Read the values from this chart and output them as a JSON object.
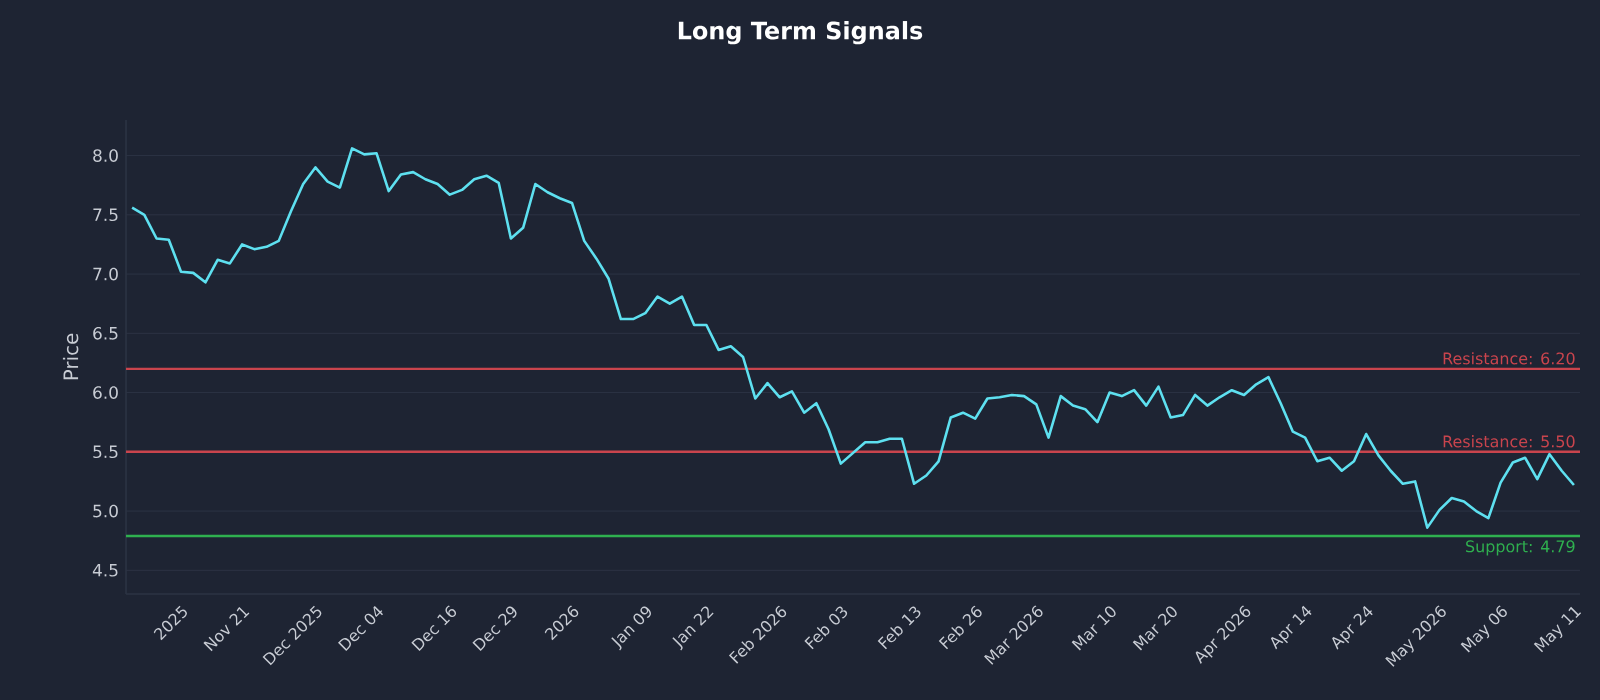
{
  "chart_data": {
    "type": "line",
    "title": "Long Term Signals",
    "ylabel": "Price",
    "categories": [
      null,
      null,
      null,
      null,
      "2025",
      null,
      null,
      null,
      null,
      "Nov 21",
      null,
      null,
      null,
      null,
      null,
      "Dec 2025",
      null,
      null,
      null,
      null,
      "Dec 04",
      null,
      null,
      null,
      null,
      null,
      "Dec 16",
      null,
      null,
      null,
      null,
      "Dec 29",
      null,
      null,
      null,
      null,
      "2026",
      null,
      null,
      null,
      null,
      null,
      "Jan 09",
      null,
      null,
      null,
      null,
      "Jan 22",
      null,
      null,
      null,
      null,
      null,
      "Feb 2026",
      null,
      null,
      null,
      null,
      "Feb 03",
      null,
      null,
      null,
      null,
      null,
      "Feb 13",
      null,
      null,
      null,
      null,
      "Feb 26",
      null,
      null,
      null,
      null,
      "Mar 2026",
      null,
      null,
      null,
      null,
      null,
      "Mar 10",
      null,
      null,
      null,
      null,
      "Mar 20",
      null,
      null,
      null,
      null,
      null,
      "Apr 2026",
      null,
      null,
      null,
      null,
      "Apr 14",
      null,
      null,
      null,
      null,
      "Apr 24",
      null,
      null,
      null,
      null,
      null,
      "May 2026",
      null,
      null,
      null,
      null,
      "May 06",
      null,
      null,
      null,
      null,
      null,
      "May 11"
    ],
    "series": [
      {
        "color": "#5ee0f0",
        "values": [
          7.56,
          7.5,
          7.3,
          7.29,
          7.02,
          7.01,
          6.93,
          7.12,
          7.09,
          7.25,
          7.21,
          7.23,
          7.28,
          7.53,
          7.76,
          7.9,
          7.78,
          7.73,
          8.06,
          8.01,
          8.02,
          7.7,
          7.84,
          7.86,
          7.8,
          7.76,
          7.67,
          7.71,
          7.8,
          7.83,
          7.77,
          7.3,
          7.39,
          7.76,
          7.69,
          7.64,
          7.6,
          7.28,
          7.13,
          6.96,
          6.62,
          6.62,
          6.67,
          6.81,
          6.75,
          6.81,
          6.57,
          6.57,
          6.36,
          6.39,
          6.3,
          5.95,
          6.08,
          5.96,
          6.01,
          5.83,
          5.91,
          5.69,
          5.4,
          5.49,
          5.58,
          5.58,
          5.61,
          5.61,
          5.23,
          5.3,
          5.42,
          5.79,
          5.83,
          5.78,
          5.95,
          5.96,
          5.98,
          5.97,
          5.9,
          5.62,
          5.97,
          5.89,
          5.86,
          5.75,
          6.0,
          5.97,
          6.02,
          5.89,
          6.05,
          5.79,
          5.81,
          5.98,
          5.89,
          5.96,
          6.02,
          5.98,
          6.07,
          6.13,
          5.91,
          5.67,
          5.62,
          5.42,
          5.45,
          5.34,
          5.42,
          5.65,
          5.47,
          5.34,
          5.23,
          5.25,
          4.86,
          5.01,
          5.11,
          5.08,
          5.0,
          4.94,
          5.24,
          5.41,
          5.45,
          5.27,
          5.48,
          5.34,
          5.22
        ]
      }
    ],
    "ylim": [
      4.3,
      8.3
    ],
    "yticks": [
      4.5,
      {
        "value": 5,
        "label": "5.0"
      },
      5.5,
      {
        "value": 6,
        "label": "6.0"
      },
      6.5,
      {
        "value": 7,
        "label": "7.0"
      },
      7.5,
      {
        "value": 8,
        "label": "8.0"
      }
    ],
    "grid": "y",
    "marker": "none",
    "line_style": "solid",
    "ref_lines": [
      {
        "axis": "y",
        "value": 6.2,
        "label": "Resistance: 6.20",
        "color": "#c9444d"
      },
      {
        "axis": "y",
        "value": 5.5,
        "label": "Resistance: 5.50",
        "color": "#c9444d"
      },
      {
        "axis": "y",
        "value": 4.79,
        "label": "Support: 4.79",
        "color": "#2fb04f"
      }
    ]
  }
}
